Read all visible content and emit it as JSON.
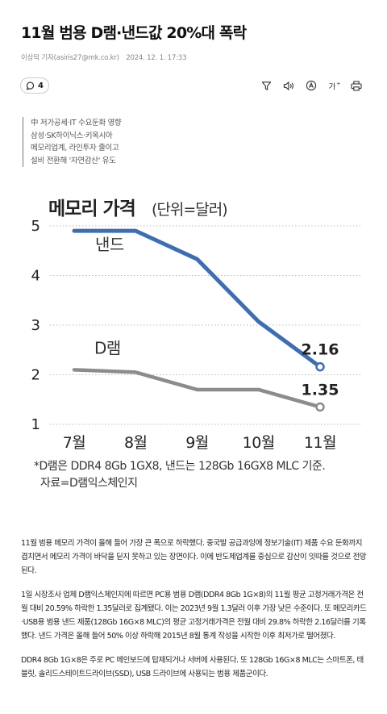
{
  "article": {
    "headline": "11월 범용 D램·낸드값 20%대 폭락",
    "byline": "이상덕 기자(asiris27@mk.co.kr)",
    "date": "2024. 12. 1. 17:33",
    "comment_count": "4",
    "summary": [
      "中 저가공세·IT 수요둔화 영향",
      "삼성·SK하이닉스·키옥시아",
      "메모리업계, 라인투자 줄이고",
      "설비 전환해 '자연감산' 유도"
    ],
    "paragraphs": [
      "11월 범용 메모리 가격이 올해 들어 가장 큰 폭으로 하락했다. 중국발 공급과잉에 정보기술(IT) 제품 수요 둔화까지 겹치면서 메모리 가격이 바닥을 딛지 못하고 있는 장면이다. 이에 반도체업계를 중심으로 감산이 잇따를 것으로 전망된다.",
      "1일 시장조사 업체 D램익스체인지에 따르면 PC용 범용 D램(DDR4 8Gb 1G×8)의 11월 평균 고정거래가격은 전월 대비 20.59% 하락한 1.35달러로 집계됐다. 이는 2023년 9월 1.3달러 이후 가장 낮은 수준이다. 또 메모리카드·USB용 범용 낸드 제품(128Gb 16G×8 MLC)의 평균 고정거래가격은 전월 대비 29.8% 하락한 2.16달러를 기록했다. 낸드 가격은 올해 들어 50% 이상 하락해 2015년 8월 통계 작성을 시작한 이후 최저가로 떨어졌다.",
      "DDR4 8Gb 1G×8은 주로 PC 메인보드에 탑재되거나 서버에 사용된다. 또 128Gb 16G×8 MLC는 스마트폰, 태블릿, 솔리드스테이트드라이브(SSD), USB 드라이브에 사용되는 범용 제품군이다."
    ]
  },
  "icons": {
    "comment": "speech-bubble-icon",
    "tools": [
      "filter-icon",
      "speaker-icon",
      "translate-icon",
      "font-size-icon",
      "print-icon"
    ]
  },
  "chart_data": {
    "type": "line",
    "title": "메모리 가격",
    "unit": "(단위=달러)",
    "categories": [
      "7월",
      "8월",
      "9월",
      "10월",
      "11월"
    ],
    "series": [
      {
        "name": "낸드",
        "color": "#3d6db5",
        "values": [
          4.9,
          4.9,
          4.33,
          3.07,
          2.16
        ]
      },
      {
        "name": "D램",
        "color": "#8c8c8c",
        "values": [
          2.1,
          2.05,
          1.7,
          1.7,
          1.35
        ]
      }
    ],
    "end_labels": [
      "2.16",
      "1.35"
    ],
    "yticks": [
      "1",
      "2",
      "3",
      "4",
      "5"
    ],
    "ylim": [
      1,
      5
    ],
    "grid": true,
    "footnote": "*D램은 DDR4 8Gb 1GX8, 낸드는 128Gb 16GX8 MLC 기준.",
    "source": "자료=D램익스체인지"
  }
}
